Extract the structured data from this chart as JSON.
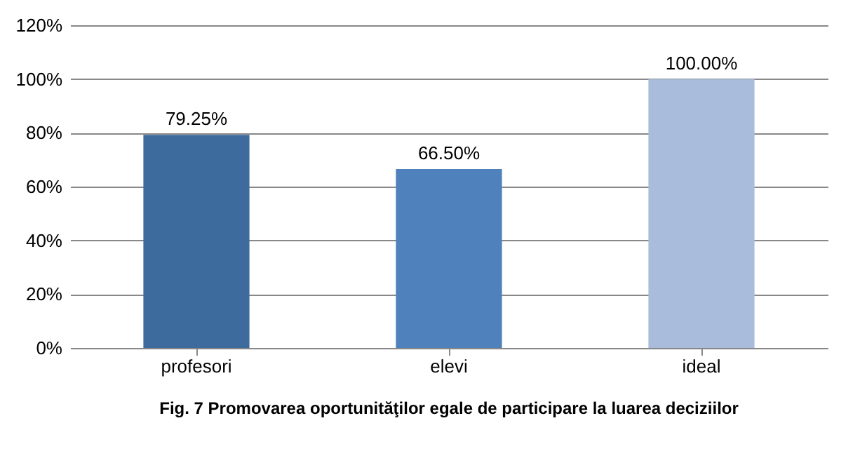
{
  "chart_data": {
    "type": "bar",
    "title": "Fig. 7 Promovarea oportunităţilor egale de participare la luarea deciziilor",
    "categories": [
      "profesori",
      "elevi",
      "ideal"
    ],
    "values": [
      79.25,
      66.5,
      100
    ],
    "colors": [
      "#3e6b9e",
      "#4f81bd",
      "#a9bcdb"
    ],
    "value_labels": [
      "79.25%",
      "66.50%",
      "100.00%"
    ],
    "ylim": [
      0,
      120
    ],
    "yticks": [
      {
        "value": 0,
        "label": "0%"
      },
      {
        "value": 20,
        "label": "20%"
      },
      {
        "value": 40,
        "label": "40%"
      },
      {
        "value": 60,
        "label": "60%"
      },
      {
        "value": 80,
        "label": "80%"
      },
      {
        "value": 100,
        "label": "100%"
      },
      {
        "value": 120,
        "label": "120%"
      }
    ],
    "grid": "y"
  }
}
